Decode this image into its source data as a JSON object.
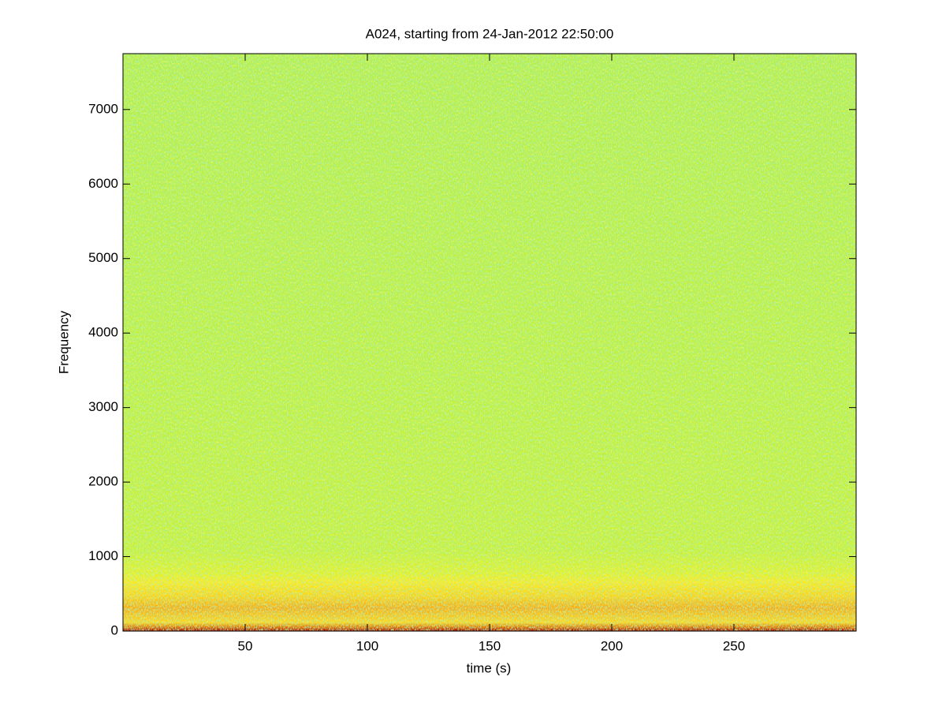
{
  "chart_data": {
    "type": "spectrogram",
    "title": "A024, starting from 24-Jan-2012 22:50:00",
    "x_label": "time (s)",
    "y_label": "Frequency",
    "xlim": [
      0,
      300
    ],
    "xticks": [
      50,
      100,
      150,
      200,
      250
    ],
    "ylim": [
      0,
      7750
    ],
    "yticks": [
      0,
      1000,
      2000,
      3000,
      4000,
      5000,
      6000,
      7000
    ]
  }
}
